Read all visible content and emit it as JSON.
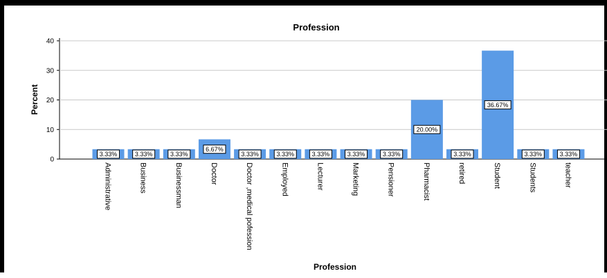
{
  "chart_data": {
    "type": "bar",
    "title": "Profession",
    "xlabel": "Profession",
    "ylabel": "Percent",
    "ylim": [
      0,
      40
    ],
    "yticks": [
      0,
      10,
      20,
      30,
      40
    ],
    "grid": true,
    "bar_color": "#5b9be6",
    "categories": [
      "Administrative",
      "Business",
      "Businessman",
      "Doctor",
      "Doctor ,medical pofession",
      "Employed",
      "Lecturer",
      "Marketing",
      "Pensioner",
      "Pharmacist",
      "retired",
      "Student",
      "Students",
      "teacher"
    ],
    "values": [
      3.33,
      3.33,
      3.33,
      6.67,
      3.33,
      3.33,
      3.33,
      3.33,
      3.33,
      20.0,
      3.33,
      36.67,
      3.33,
      3.33
    ],
    "data_labels": [
      "3.33%",
      "3.33%",
      "3.33%",
      "6.67%",
      "3.33%",
      "3.33%",
      "3.33%",
      "3.33%",
      "3.33%",
      "20.00%",
      "3.33%",
      "36.67%",
      "3.33%",
      "3.33%"
    ]
  }
}
